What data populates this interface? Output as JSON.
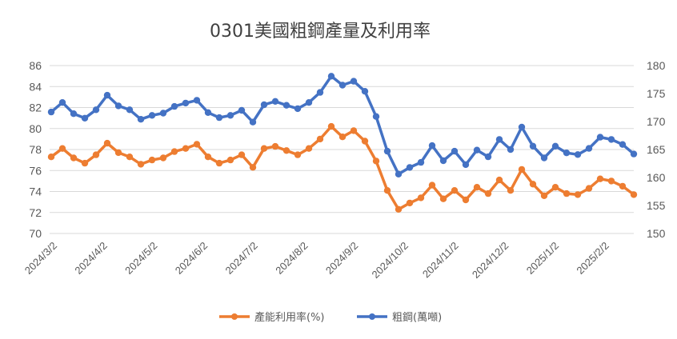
{
  "chart_data": {
    "type": "line",
    "title": "0301美國粗鋼產量及利用率",
    "x_tick_labels": [
      "2024/3/2",
      "2024/4/2",
      "2024/5/2",
      "2024/6/2",
      "2024/7/2",
      "2024/8/2",
      "2024/9/2",
      "2024/10/2",
      "2024/11/2",
      "2024/12/2",
      "2025/1/2",
      "2025/2/2"
    ],
    "left_axis": {
      "min": 70,
      "max": 86,
      "step": 2,
      "ticks": [
        "70",
        "72",
        "74",
        "76",
        "78",
        "80",
        "82",
        "84",
        "86"
      ]
    },
    "right_axis": {
      "min": 150,
      "max": 180,
      "step": 5,
      "ticks": [
        "150",
        "155",
        "160",
        "165",
        "170",
        "175",
        "180"
      ]
    },
    "series": [
      {
        "name": "產能利用率(%)",
        "axis": "left",
        "color": "#ED7D31",
        "values": [
          77.3,
          78.1,
          77.2,
          76.7,
          77.5,
          78.6,
          77.7,
          77.3,
          76.6,
          77.0,
          77.2,
          77.8,
          78.1,
          78.5,
          77.3,
          76.7,
          77.0,
          77.5,
          76.3,
          78.1,
          78.3,
          77.9,
          77.5,
          78.1,
          79.0,
          80.2,
          79.2,
          79.8,
          78.8,
          76.9,
          74.1,
          72.3,
          72.9,
          73.4,
          74.6,
          73.3,
          74.1,
          73.2,
          74.4,
          73.8,
          75.1,
          74.1,
          76.1,
          74.7,
          73.6,
          74.4,
          73.8,
          73.7,
          74.3,
          75.2,
          75.0,
          74.5,
          73.7
        ]
      },
      {
        "name": "粗鋼(萬噸)",
        "axis": "right",
        "color": "#4472C4",
        "values": [
          171.7,
          173.4,
          171.4,
          170.6,
          172.1,
          174.7,
          172.8,
          172.1,
          170.4,
          171.1,
          171.5,
          172.7,
          173.3,
          173.8,
          171.6,
          170.7,
          171.1,
          172.0,
          169.9,
          173.0,
          173.6,
          172.9,
          172.3,
          173.4,
          175.2,
          178.1,
          176.5,
          177.2,
          175.4,
          170.9,
          164.7,
          160.6,
          161.8,
          162.7,
          165.7,
          163.0,
          164.7,
          162.3,
          164.9,
          163.7,
          166.8,
          165.0,
          169.0,
          165.6,
          163.5,
          165.6,
          164.4,
          164.1,
          165.2,
          167.2,
          166.8,
          165.9,
          164.2
        ]
      }
    ],
    "legend": {
      "position": "bottom",
      "entries": [
        "產能利用率(%)",
        "粗鋼(萬噸)"
      ]
    },
    "grid": true
  }
}
